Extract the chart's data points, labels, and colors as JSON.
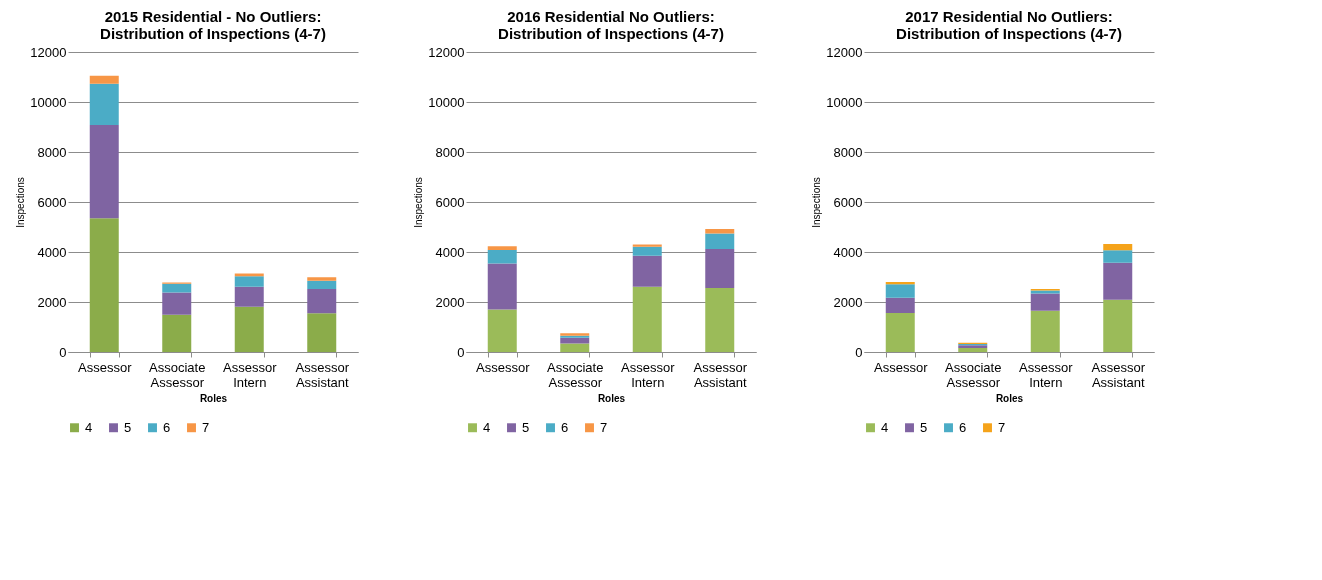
{
  "chart_data": [
    {
      "type": "bar",
      "title": "2015 Residential - No Outliers: Distribution of Inspections (4-7)",
      "xlabel": "Roles",
      "ylabel": "Inspections",
      "categories": [
        "Assessor",
        "Associate Assessor",
        "Assessor Intern",
        "Assessor Assistant"
      ],
      "stacked": true,
      "ylim": [
        0,
        12000
      ],
      "yticks": [
        0,
        2000,
        4000,
        6000,
        8000,
        10000,
        12000
      ],
      "grid": "y",
      "legend": "bottom",
      "series": [
        {
          "name": "4",
          "color": "#8bac4a",
          "values": [
            5350,
            1490,
            1810,
            1550
          ]
        },
        {
          "name": "5",
          "color": "#7f64a2",
          "values": [
            3730,
            890,
            800,
            970
          ]
        },
        {
          "name": "6",
          "color": "#4bacc6",
          "values": [
            1650,
            350,
            420,
            330
          ]
        },
        {
          "name": "7",
          "color": "#f79646",
          "values": [
            320,
            50,
            110,
            140
          ]
        }
      ]
    },
    {
      "type": "bar",
      "title": "2016 Residential No Outliers: Distribution of Inspections (4-7)",
      "xlabel": "Roles",
      "ylabel": "Inspections",
      "categories": [
        "Assessor",
        "Associate Assessor",
        "Assessor Intern",
        "Assessor Assistant"
      ],
      "stacked": true,
      "ylim": [
        0,
        12000
      ],
      "yticks": [
        0,
        2000,
        4000,
        6000,
        8000,
        10000,
        12000
      ],
      "grid": "y",
      "legend": "bottom",
      "series": [
        {
          "name": "4",
          "color": "#9bbb59",
          "values": [
            1700,
            340,
            2610,
            2560
          ]
        },
        {
          "name": "5",
          "color": "#8064a2",
          "values": [
            1840,
            230,
            1240,
            1560
          ]
        },
        {
          "name": "6",
          "color": "#4bacc6",
          "values": [
            540,
            80,
            360,
            620
          ]
        },
        {
          "name": "7",
          "color": "#f79646",
          "values": [
            150,
            100,
            90,
            180
          ]
        }
      ]
    },
    {
      "type": "bar",
      "title": "2017 Residential No Outliers: Distribution of Inspections (4-7)",
      "xlabel": "Roles",
      "ylabel": "Inspections",
      "categories": [
        "Assessor",
        "Associate Assessor",
        "Assessor Intern",
        "Assessor Assistant"
      ],
      "stacked": true,
      "ylim": [
        0,
        12000
      ],
      "yticks": [
        0,
        2000,
        4000,
        6000,
        8000,
        10000,
        12000
      ],
      "grid": "y",
      "legend": "bottom",
      "series": [
        {
          "name": "4",
          "color": "#9bbb59",
          "values": [
            1560,
            160,
            1650,
            2090
          ]
        },
        {
          "name": "5",
          "color": "#8064a2",
          "values": [
            610,
            110,
            690,
            1480
          ]
        },
        {
          "name": "6",
          "color": "#4bacc6",
          "values": [
            540,
            50,
            120,
            500
          ]
        },
        {
          "name": "7",
          "color": "#f5a31a",
          "values": [
            90,
            50,
            60,
            250
          ]
        }
      ]
    }
  ]
}
